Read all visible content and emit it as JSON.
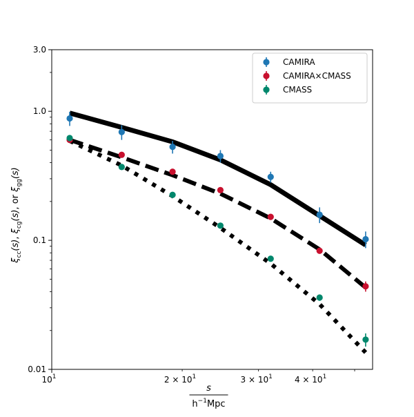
{
  "chart_data": {
    "type": "line",
    "title": "",
    "xscale": "log",
    "yscale": "log",
    "xlim": [
      10,
      55
    ],
    "ylim": [
      0.01,
      3.0
    ],
    "xlabel_numerator": "s",
    "xlabel_denominator_prefix": "h",
    "xlabel_denominator_exp": "−1",
    "xlabel_denominator_suffix": "Mpc",
    "ylabel_parts": {
      "xi": "ξ",
      "sub_cc": "cc",
      "sub_cg": "cg",
      "sub_gg": "gg",
      "arg": "(s)",
      "sep": ", ",
      "or": ", or "
    },
    "x_major_ticks": [
      {
        "value": 10,
        "label": "10",
        "exp": "1"
      }
    ],
    "x_minor_ticks": [
      {
        "value": 20,
        "label": "2 × 10",
        "exp": "1"
      },
      {
        "value": 30,
        "label": "3 × 10",
        "exp": "1"
      },
      {
        "value": 40,
        "label": "4 × 10",
        "exp": "1"
      },
      {
        "value": 50,
        "label": "",
        "exp": ""
      }
    ],
    "y_ticks": [
      {
        "value": 0.01,
        "label": "0.01"
      },
      {
        "value": 0.1,
        "label": "0.1"
      },
      {
        "value": 1.0,
        "label": "1.0"
      },
      {
        "value": 3.0,
        "label": "3.0"
      }
    ],
    "legend_position": "upper-right",
    "series": [
      {
        "name": "CAMIRA",
        "color": "#1f77b4",
        "x": [
          11.0,
          14.5,
          19.0,
          24.5,
          32.0,
          41.5,
          53.0
        ],
        "y": [
          0.88,
          0.69,
          0.53,
          0.45,
          0.31,
          0.158,
          0.102
        ],
        "err": [
          0.11,
          0.09,
          0.06,
          0.05,
          0.03,
          0.022,
          0.015
        ]
      },
      {
        "name": "CAMIRA×CMASS",
        "color": "#c8102e",
        "x": [
          11.0,
          14.5,
          19.0,
          24.5,
          32.0,
          41.5,
          53.0
        ],
        "y": [
          0.6,
          0.46,
          0.34,
          0.245,
          0.152,
          0.083,
          0.044
        ],
        "err": [
          0.02,
          0.015,
          0.01,
          0.008,
          0.006,
          0.004,
          0.004
        ]
      },
      {
        "name": "CMASS",
        "color": "#00876c",
        "x": [
          11.0,
          14.5,
          19.0,
          24.5,
          32.0,
          41.5,
          53.0
        ],
        "y": [
          0.62,
          0.37,
          0.225,
          0.13,
          0.072,
          0.036,
          0.017
        ],
        "err": [
          0.02,
          0.01,
          0.006,
          0.004,
          0.003,
          0.002,
          0.002
        ]
      }
    ],
    "model_lines": [
      {
        "name": "solid",
        "style": "solid",
        "x": [
          11.0,
          14.5,
          19.0,
          24.5,
          32.0,
          41.5,
          53.0
        ],
        "y": [
          0.97,
          0.75,
          0.58,
          0.42,
          0.27,
          0.155,
          0.092
        ]
      },
      {
        "name": "dashed",
        "style": "dashed",
        "x": [
          11.0,
          14.5,
          19.0,
          24.5,
          32.0,
          41.5,
          53.0
        ],
        "y": [
          0.6,
          0.44,
          0.32,
          0.23,
          0.148,
          0.085,
          0.043
        ]
      },
      {
        "name": "dotted",
        "style": "dotted",
        "x": [
          11.0,
          14.5,
          19.0,
          24.5,
          32.0,
          41.5,
          53.0
        ],
        "y": [
          0.59,
          0.38,
          0.22,
          0.125,
          0.066,
          0.032,
          0.0135
        ]
      }
    ]
  }
}
